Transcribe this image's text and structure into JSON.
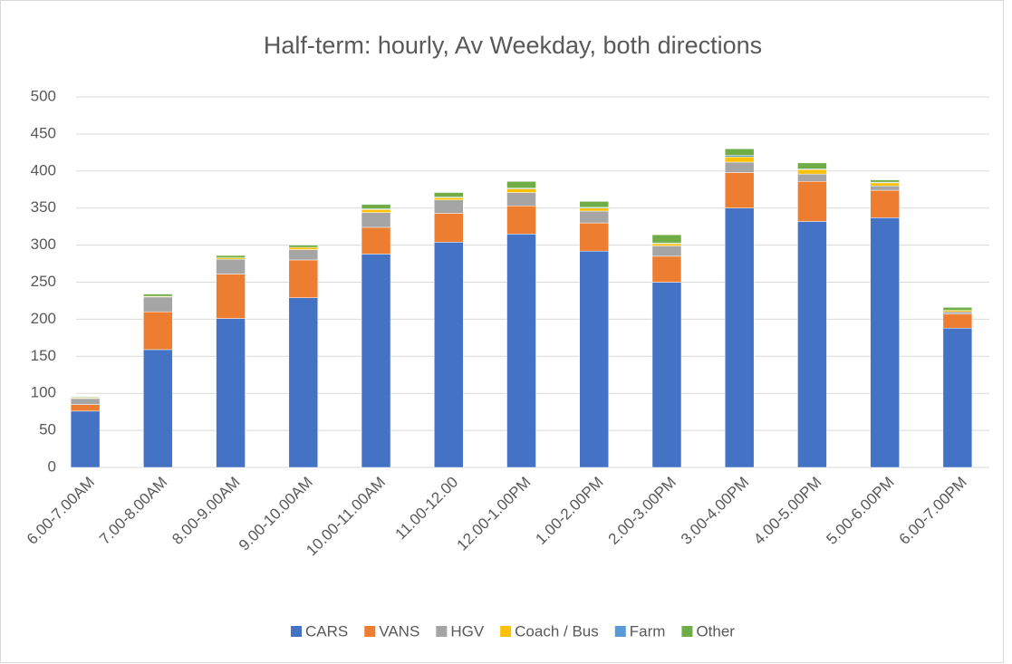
{
  "chart_data": {
    "type": "stacked_bar",
    "title": "Half-term: hourly, Av Weekday, both directions",
    "categories": [
      "6.00-7.00AM",
      "7.00-8.00AM",
      "8.00-9.00AM",
      "9.00-10.00AM",
      "10.00-11.00AM",
      "11.00-12.00",
      "12.00-1.00PM",
      "1.00-2.00PM",
      "2.00-3.00PM",
      "3.00-4.00PM",
      "4.00-5.00PM",
      "5.00-6.00PM",
      "6.00-7.00PM"
    ],
    "series": [
      {
        "name": "CARS",
        "color": "#4472c4",
        "values": [
          76,
          159,
          201,
          229,
          288,
          304,
          315,
          292,
          250,
          350,
          332,
          337,
          188
        ]
      },
      {
        "name": "VANS",
        "color": "#ed7d31",
        "values": [
          9,
          51,
          60,
          51,
          36,
          39,
          38,
          38,
          35,
          48,
          54,
          37,
          19
        ]
      },
      {
        "name": "HGV",
        "color": "#a5a5a5",
        "values": [
          8,
          20,
          20,
          14,
          20,
          18,
          18,
          16,
          14,
          14,
          10,
          6,
          3
        ]
      },
      {
        "name": "Coach / Bus",
        "color": "#ffc000",
        "values": [
          1,
          1,
          2,
          3,
          4,
          3,
          5,
          4,
          3,
          7,
          6,
          4,
          2
        ]
      },
      {
        "name": "Farm",
        "color": "#5b9bd5",
        "values": [
          0,
          0,
          0,
          0,
          1,
          1,
          1,
          1,
          1,
          2,
          1,
          1,
          0
        ]
      },
      {
        "name": "Other",
        "color": "#70ad47",
        "values": [
          1,
          3,
          3,
          3,
          6,
          6,
          9,
          8,
          11,
          9,
          8,
          3,
          4
        ]
      }
    ],
    "ylim": [
      0,
      500
    ],
    "yticks": [
      0,
      50,
      100,
      150,
      200,
      250,
      300,
      350,
      400,
      450,
      500
    ],
    "grid": true,
    "legend": "bottom"
  }
}
